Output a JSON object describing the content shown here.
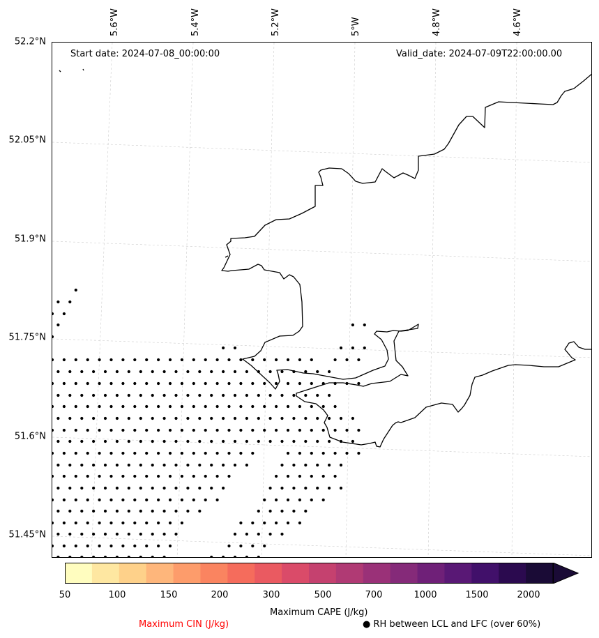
{
  "annotations": {
    "start_date": "Start date: 2024-07-08_00:00:00",
    "valid_date": "Valid_date: 2024-07-09T22:00:00.00"
  },
  "axes": {
    "lon_ticks": [
      "5.6°W",
      "5.4°W",
      "5.2°W",
      "5°W",
      "4.8°W",
      "4.6°W"
    ],
    "lat_ticks": [
      "52.2°N",
      "52.05°N",
      "51.9°N",
      "51.75°N",
      "51.6°N",
      "51.45°N"
    ]
  },
  "colorbar": {
    "label": "Maximum CAPE (J/kg)",
    "tick_labels": [
      "50",
      "100",
      "150",
      "200",
      "300",
      "500",
      "700",
      "1000",
      "1500",
      "2000"
    ],
    "colors": [
      "#fffdbf",
      "#fee7a1",
      "#fed18a",
      "#feb67b",
      "#fd9c6b",
      "#fa8460",
      "#f56c5c",
      "#ea5a61",
      "#da4b69",
      "#c5416f",
      "#b03a74",
      "#9a3178",
      "#852a79",
      "#6f2078",
      "#591875",
      "#41106a",
      "#2b0a4f",
      "#1a0b36"
    ],
    "extend_color": "#1a0b36"
  },
  "legend": {
    "cin_label": "Maximum CIN (J/kg)",
    "rh_label": "RH between LCL and LFC (over 60%)",
    "rh_marker": "●",
    "cin_color": "#ff0000"
  },
  "colors": {
    "coastline": "#000000",
    "grid": "#cccccc",
    "stipple": "#000000"
  }
}
